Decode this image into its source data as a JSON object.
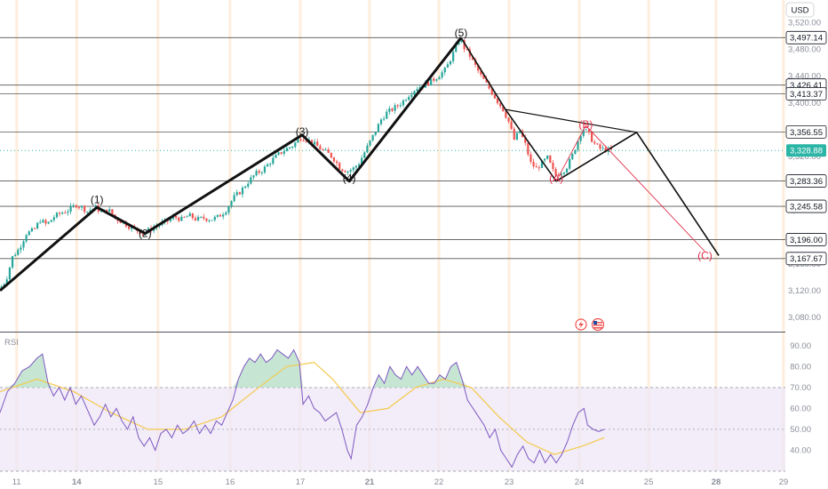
{
  "currency": "USD",
  "rsi_label": "RSI",
  "colors": {
    "up": "#26a69a",
    "down": "#ef5350",
    "wave": "#111111",
    "corrective": "#e0314b",
    "level_line": "#555555",
    "current_price_badge": "#2bb5a6",
    "rsi_line": "#7e57c2",
    "rsi_ma": "#f5c94c",
    "rsi_band": "#ede7f6"
  },
  "chart_data": [
    {
      "type": "candlestick",
      "title": "",
      "x_ticks": [
        "11",
        "14",
        "15",
        "16",
        "17",
        "21",
        "22",
        "23",
        "24",
        "25",
        "28",
        "29"
      ],
      "y_ticks": [
        "3,520.00",
        "3,480.00",
        "3,440.00",
        "3,400.00",
        "3,360.00",
        "3,320.00",
        "3,280.00",
        "3,240.00",
        "3,200.00",
        "3,160.00",
        "3,120.00",
        "3,080.00"
      ],
      "ylim": [
        3060,
        3540
      ],
      "price_levels": [
        {
          "label": "3,497.14",
          "value": 3497.14
        },
        {
          "label": "3,426.41",
          "value": 3426.41
        },
        {
          "label": "3,413.37",
          "value": 3413.37
        },
        {
          "label": "3,356.55",
          "value": 3356.55
        },
        {
          "label": "3,328.88",
          "value": 3328.88,
          "current": true
        },
        {
          "label": "3,283.36",
          "value": 3283.36
        },
        {
          "label": "3,245.58",
          "value": 3245.58
        },
        {
          "label": "3,196.00",
          "value": 3196.0
        },
        {
          "label": "3,167.67",
          "value": 3167.67
        }
      ],
      "wave_labels": [
        {
          "label": "(1)",
          "bar": 105,
          "price": 3250
        },
        {
          "label": "(2)",
          "bar": 157,
          "price": 3200
        },
        {
          "label": "(3)",
          "bar": 327,
          "price": 3352
        },
        {
          "label": "(4)",
          "bar": 378,
          "price": 3282
        },
        {
          "label": "(5)",
          "bar": 499,
          "price": 3499
        },
        {
          "label": "(A)",
          "bar": 602,
          "price": 3282
        },
        {
          "label": "(B)",
          "bar": 634,
          "price": 3362
        },
        {
          "label": "(C)",
          "bar": 763,
          "price": 3167
        }
      ],
      "impulse_path": [
        {
          "bar": 0,
          "price": 3120
        },
        {
          "bar": 105,
          "price": 3244
        },
        {
          "bar": 157,
          "price": 3205
        },
        {
          "bar": 327,
          "price": 3352
        },
        {
          "bar": 378,
          "price": 3283
        },
        {
          "bar": 499,
          "price": 3497
        },
        {
          "bar": 547,
          "price": 3390
        },
        {
          "bar": 602,
          "price": 3283
        },
        {
          "bar": 689,
          "price": 3356
        },
        {
          "bar": 778,
          "price": 3172
        }
      ],
      "triangle_upper": [
        {
          "bar": 547,
          "price": 3390
        },
        {
          "bar": 689,
          "price": 3356
        }
      ],
      "triangle_lower": [
        {
          "bar": 602,
          "price": 3283
        },
        {
          "bar": 689,
          "price": 3356
        }
      ],
      "corrective_path": [
        {
          "bar": 602,
          "price": 3283
        },
        {
          "bar": 634,
          "price": 3366
        },
        {
          "bar": 763,
          "price": 3178
        }
      ],
      "price_series": [
        [
          0,
          3120
        ],
        [
          8,
          3135
        ],
        [
          15,
          3170
        ],
        [
          22,
          3182
        ],
        [
          30,
          3205
        ],
        [
          38,
          3210
        ],
        [
          45,
          3225
        ],
        [
          52,
          3218
        ],
        [
          60,
          3230
        ],
        [
          68,
          3236
        ],
        [
          76,
          3240
        ],
        [
          84,
          3248
        ],
        [
          90,
          3244
        ],
        [
          96,
          3238
        ],
        [
          105,
          3244
        ],
        [
          112,
          3236
        ],
        [
          118,
          3242
        ],
        [
          126,
          3228
        ],
        [
          134,
          3222
        ],
        [
          142,
          3215
        ],
        [
          150,
          3210
        ],
        [
          157,
          3205
        ],
        [
          165,
          3212
        ],
        [
          173,
          3218
        ],
        [
          181,
          3222
        ],
        [
          190,
          3230
        ],
        [
          198,
          3226
        ],
        [
          206,
          3232
        ],
        [
          214,
          3226
        ],
        [
          222,
          3228
        ],
        [
          230,
          3226
        ],
        [
          238,
          3230
        ],
        [
          246,
          3240
        ],
        [
          254,
          3258
        ],
        [
          262,
          3268
        ],
        [
          270,
          3282
        ],
        [
          278,
          3294
        ],
        [
          286,
          3300
        ],
        [
          294,
          3312
        ],
        [
          302,
          3322
        ],
        [
          310,
          3330
        ],
        [
          318,
          3336
        ],
        [
          327,
          3348
        ],
        [
          334,
          3345
        ],
        [
          342,
          3338
        ],
        [
          350,
          3330
        ],
        [
          356,
          3325
        ],
        [
          362,
          3318
        ],
        [
          370,
          3302
        ],
        [
          378,
          3298
        ],
        [
          384,
          3302
        ],
        [
          390,
          3310
        ],
        [
          396,
          3326
        ],
        [
          402,
          3342
        ],
        [
          408,
          3358
        ],
        [
          414,
          3375
        ],
        [
          420,
          3385
        ],
        [
          428,
          3392
        ],
        [
          436,
          3400
        ],
        [
          444,
          3412
        ],
        [
          452,
          3422
        ],
        [
          460,
          3426
        ],
        [
          468,
          3432
        ],
        [
          476,
          3440
        ],
        [
          484,
          3450
        ],
        [
          490,
          3468
        ],
        [
          496,
          3486
        ],
        [
          499,
          3497
        ],
        [
          504,
          3482
        ],
        [
          510,
          3470
        ],
        [
          516,
          3455
        ],
        [
          522,
          3440
        ],
        [
          528,
          3428
        ],
        [
          534,
          3415
        ],
        [
          540,
          3402
        ],
        [
          546,
          3390
        ],
        [
          552,
          3372
        ],
        [
          558,
          3345
        ],
        [
          564,
          3358
        ],
        [
          570,
          3338
        ],
        [
          576,
          3310
        ],
        [
          582,
          3302
        ],
        [
          588,
          3310
        ],
        [
          594,
          3318
        ],
        [
          602,
          3292
        ],
        [
          608,
          3296
        ],
        [
          614,
          3302
        ],
        [
          620,
          3318
        ],
        [
          626,
          3340
        ],
        [
          632,
          3362
        ],
        [
          638,
          3355
        ],
        [
          644,
          3340
        ],
        [
          650,
          3332
        ],
        [
          656,
          3330
        ],
        [
          660,
          3329
        ]
      ],
      "rsi": {
        "ylim": [
          30,
          95
        ],
        "y_ticks": [
          "90.00",
          "80.00",
          "70.00",
          "60.00",
          "50.00",
          "40.00"
        ],
        "overbought": 70,
        "oversold": 30,
        "values": [
          [
            0,
            58
          ],
          [
            8,
            68
          ],
          [
            16,
            72
          ],
          [
            24,
            78
          ],
          [
            32,
            80
          ],
          [
            40,
            84
          ],
          [
            46,
            86
          ],
          [
            52,
            72
          ],
          [
            58,
            66
          ],
          [
            64,
            70
          ],
          [
            70,
            64
          ],
          [
            76,
            70
          ],
          [
            82,
            62
          ],
          [
            88,
            66
          ],
          [
            96,
            58
          ],
          [
            102,
            52
          ],
          [
            108,
            56
          ],
          [
            114,
            62
          ],
          [
            120,
            56
          ],
          [
            126,
            60
          ],
          [
            132,
            54
          ],
          [
            138,
            50
          ],
          [
            144,
            56
          ],
          [
            150,
            46
          ],
          [
            156,
            42
          ],
          [
            162,
            46
          ],
          [
            168,
            40
          ],
          [
            174,
            48
          ],
          [
            180,
            50
          ],
          [
            186,
            46
          ],
          [
            192,
            52
          ],
          [
            198,
            48
          ],
          [
            204,
            50
          ],
          [
            210,
            54
          ],
          [
            216,
            48
          ],
          [
            222,
            52
          ],
          [
            228,
            48
          ],
          [
            234,
            54
          ],
          [
            240,
            52
          ],
          [
            246,
            58
          ],
          [
            252,
            64
          ],
          [
            258,
            74
          ],
          [
            264,
            80
          ],
          [
            270,
            84
          ],
          [
            276,
            82
          ],
          [
            282,
            86
          ],
          [
            288,
            82
          ],
          [
            294,
            84
          ],
          [
            300,
            88
          ],
          [
            306,
            86
          ],
          [
            312,
            84
          ],
          [
            318,
            88
          ],
          [
            324,
            82
          ],
          [
            328,
            62
          ],
          [
            334,
            66
          ],
          [
            340,
            60
          ],
          [
            346,
            58
          ],
          [
            352,
            54
          ],
          [
            358,
            56
          ],
          [
            364,
            58
          ],
          [
            370,
            50
          ],
          [
            376,
            40
          ],
          [
            380,
            36
          ],
          [
            386,
            52
          ],
          [
            392,
            56
          ],
          [
            398,
            62
          ],
          [
            404,
            70
          ],
          [
            410,
            76
          ],
          [
            416,
            72
          ],
          [
            422,
            80
          ],
          [
            428,
            76
          ],
          [
            434,
            74
          ],
          [
            440,
            80
          ],
          [
            446,
            76
          ],
          [
            452,
            80
          ],
          [
            458,
            76
          ],
          [
            464,
            72
          ],
          [
            470,
            72
          ],
          [
            476,
            76
          ],
          [
            482,
            74
          ],
          [
            488,
            80
          ],
          [
            494,
            82
          ],
          [
            500,
            74
          ],
          [
            506,
            64
          ],
          [
            512,
            60
          ],
          [
            518,
            56
          ],
          [
            524,
            52
          ],
          [
            530,
            46
          ],
          [
            536,
            50
          ],
          [
            542,
            40
          ],
          [
            548,
            36
          ],
          [
            554,
            32
          ],
          [
            560,
            38
          ],
          [
            566,
            42
          ],
          [
            572,
            36
          ],
          [
            578,
            34
          ],
          [
            584,
            40
          ],
          [
            590,
            34
          ],
          [
            596,
            38
          ],
          [
            602,
            34
          ],
          [
            608,
            38
          ],
          [
            614,
            44
          ],
          [
            620,
            52
          ],
          [
            626,
            58
          ],
          [
            632,
            60
          ],
          [
            636,
            52
          ],
          [
            642,
            50
          ],
          [
            648,
            49
          ],
          [
            654,
            50
          ]
        ],
        "ma": [
          [
            0,
            68
          ],
          [
            40,
            74
          ],
          [
            80,
            68
          ],
          [
            120,
            58
          ],
          [
            160,
            50
          ],
          [
            200,
            50
          ],
          [
            240,
            56
          ],
          [
            280,
            70
          ],
          [
            310,
            80
          ],
          [
            340,
            82
          ],
          [
            360,
            74
          ],
          [
            390,
            58
          ],
          [
            420,
            60
          ],
          [
            450,
            70
          ],
          [
            480,
            74
          ],
          [
            510,
            70
          ],
          [
            540,
            56
          ],
          [
            570,
            44
          ],
          [
            600,
            38
          ],
          [
            630,
            42
          ],
          [
            654,
            46
          ]
        ]
      }
    }
  ]
}
